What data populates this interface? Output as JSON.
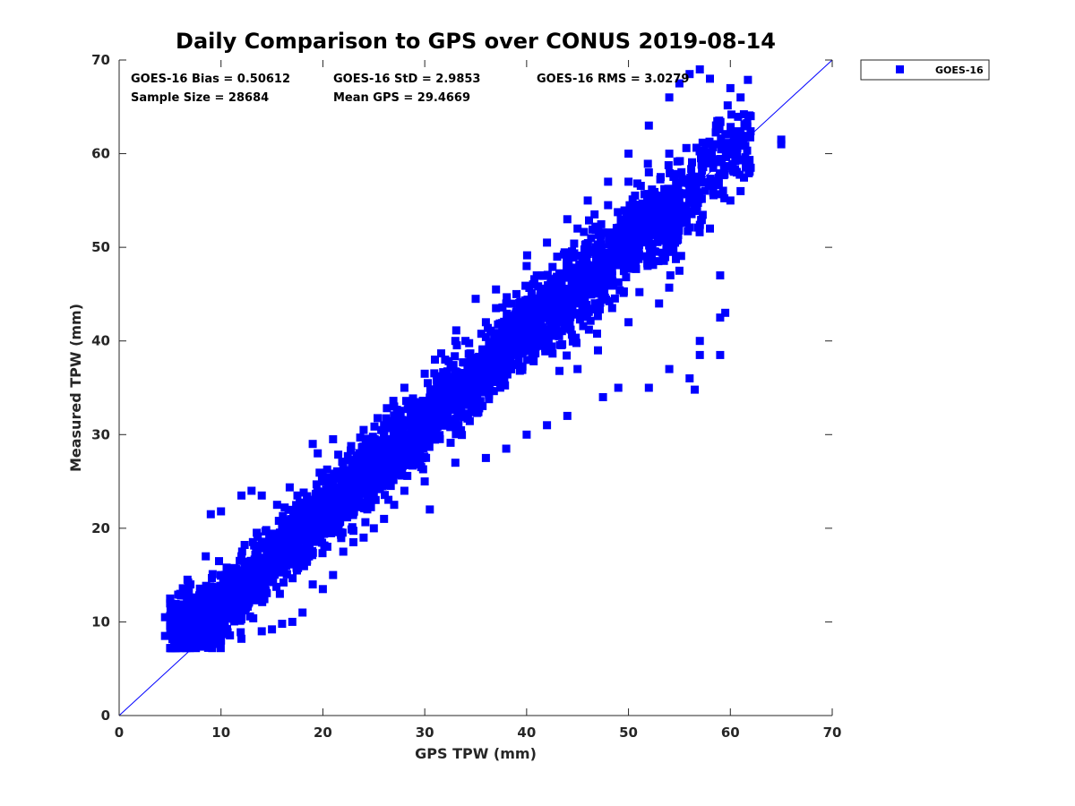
{
  "chart_data": {
    "type": "scatter",
    "title": "Daily Comparison to GPS over CONUS 2019-08-14",
    "xlabel": "GPS TPW (mm)",
    "ylabel": "Measured TPW (mm)",
    "xlim": [
      0,
      70
    ],
    "ylim": [
      0,
      70
    ],
    "xticks": [
      "0",
      "10",
      "20",
      "30",
      "40",
      "50",
      "60",
      "70"
    ],
    "yticks": [
      "0",
      "10",
      "20",
      "30",
      "40",
      "50",
      "60",
      "70"
    ],
    "grid": false,
    "legend_position": "outside-top-right",
    "reference_line": {
      "x": [
        0,
        70
      ],
      "y": [
        0,
        70
      ],
      "color": "#0000ff"
    },
    "stats": {
      "bias": "GOES-16 Bias = 0.50612",
      "std": "GOES-16 StD = 2.9853",
      "rms": "GOES-16 RMS = 3.0279",
      "sample_size": "Sample Size = 28684",
      "mean_gps": "Mean GPS = 29.4669"
    },
    "series": [
      {
        "name": "GOES-16",
        "color": "#0000ff",
        "marker": "square",
        "sample_size": 28684,
        "trend_points": [
          [
            4.5,
            9.5
          ],
          [
            6,
            9.5
          ],
          [
            8,
            10.5
          ],
          [
            10,
            11.5
          ],
          [
            12,
            13.5
          ],
          [
            14,
            15.5
          ],
          [
            16,
            17.5
          ],
          [
            18,
            19.5
          ],
          [
            20,
            21.5
          ],
          [
            22,
            23
          ],
          [
            24,
            25.5
          ],
          [
            26,
            27.5
          ],
          [
            28,
            29.5
          ],
          [
            30,
            31
          ],
          [
            32,
            33.5
          ],
          [
            34,
            35
          ],
          [
            36,
            37
          ],
          [
            38,
            39.5
          ],
          [
            40,
            41.5
          ],
          [
            42,
            43
          ],
          [
            44,
            45
          ],
          [
            46,
            47
          ],
          [
            48,
            48.5
          ],
          [
            50,
            50.5
          ],
          [
            52,
            52
          ],
          [
            54,
            53
          ],
          [
            56,
            55
          ],
          [
            58,
            58
          ],
          [
            60,
            61
          ],
          [
            62,
            62
          ]
        ],
        "outliers": [
          [
            5,
            12.5
          ],
          [
            6,
            13
          ],
          [
            7,
            14
          ],
          [
            8.5,
            17
          ],
          [
            9,
            21.5
          ],
          [
            10,
            21.8
          ],
          [
            12,
            23.5
          ],
          [
            13,
            24
          ],
          [
            14,
            23.5
          ],
          [
            15.5,
            22.5
          ],
          [
            17.5,
            23.5
          ],
          [
            19,
            29
          ],
          [
            19.5,
            28
          ],
          [
            21,
            29.5
          ],
          [
            22,
            26.5
          ],
          [
            24,
            30.5
          ],
          [
            26,
            31
          ],
          [
            27,
            33
          ],
          [
            28,
            35
          ],
          [
            30,
            36.5
          ],
          [
            31,
            38
          ],
          [
            33,
            40
          ],
          [
            35,
            44.5
          ],
          [
            37,
            45.5
          ],
          [
            40,
            48
          ],
          [
            42,
            50.5
          ],
          [
            44,
            53
          ],
          [
            46,
            55
          ],
          [
            48,
            57
          ],
          [
            50,
            60
          ],
          [
            52,
            63
          ],
          [
            54,
            66
          ],
          [
            55,
            67.5
          ],
          [
            56,
            68.5
          ],
          [
            57,
            69
          ],
          [
            58,
            68
          ],
          [
            60,
            67
          ],
          [
            61,
            66
          ],
          [
            62,
            64
          ],
          [
            65,
            61.5
          ],
          [
            65,
            61
          ],
          [
            57,
            40
          ],
          [
            57,
            38.5
          ],
          [
            59,
            38.5
          ],
          [
            59,
            47
          ],
          [
            59.5,
            43
          ],
          [
            59,
            42.5
          ],
          [
            56,
            36
          ],
          [
            56.5,
            34.8
          ],
          [
            54,
            37
          ],
          [
            52,
            35
          ],
          [
            49,
            35
          ],
          [
            47.5,
            34
          ],
          [
            44,
            32
          ],
          [
            42,
            31
          ],
          [
            40,
            30
          ],
          [
            38,
            28.5
          ],
          [
            36,
            27.5
          ],
          [
            33,
            27
          ],
          [
            30,
            25
          ],
          [
            30.5,
            22
          ],
          [
            28,
            24
          ],
          [
            26,
            21
          ],
          [
            24,
            19
          ],
          [
            22,
            17.5
          ],
          [
            21,
            15
          ],
          [
            20,
            13.5
          ],
          [
            18,
            11
          ],
          [
            17,
            10
          ],
          [
            16,
            9.8
          ],
          [
            15,
            9.2
          ],
          [
            14,
            9
          ],
          [
            12,
            8.2
          ],
          [
            10,
            8
          ],
          [
            8,
            7.6
          ],
          [
            6,
            7.5
          ],
          [
            5,
            7.2
          ],
          [
            27,
            22.5
          ],
          [
            25,
            20
          ],
          [
            23,
            18.5
          ],
          [
            19,
            14
          ],
          [
            45,
            37
          ],
          [
            47,
            39
          ],
          [
            50,
            42
          ],
          [
            53,
            44
          ],
          [
            55,
            47.5
          ],
          [
            58,
            52
          ],
          [
            61,
            56
          ],
          [
            62,
            58.5
          ],
          [
            60,
            55
          ],
          [
            36,
            42
          ],
          [
            38,
            44
          ],
          [
            34,
            40
          ],
          [
            32,
            38
          ],
          [
            45,
            52
          ],
          [
            48,
            54.5
          ],
          [
            50,
            57
          ],
          [
            52,
            58
          ],
          [
            54,
            60
          ],
          [
            43,
            49
          ],
          [
            41,
            47
          ],
          [
            39,
            45
          ],
          [
            37,
            43.5
          ],
          [
            29,
            33
          ],
          [
            27,
            30
          ],
          [
            25,
            28
          ],
          [
            23,
            26
          ],
          [
            21,
            24.5
          ],
          [
            18,
            22
          ],
          [
            16,
            20
          ],
          [
            14,
            18.5
          ],
          [
            12,
            17
          ],
          [
            10,
            15
          ],
          [
            8,
            13
          ],
          [
            6,
            11.5
          ],
          [
            4.5,
            10.5
          ],
          [
            4.5,
            8.5
          ]
        ]
      }
    ]
  }
}
